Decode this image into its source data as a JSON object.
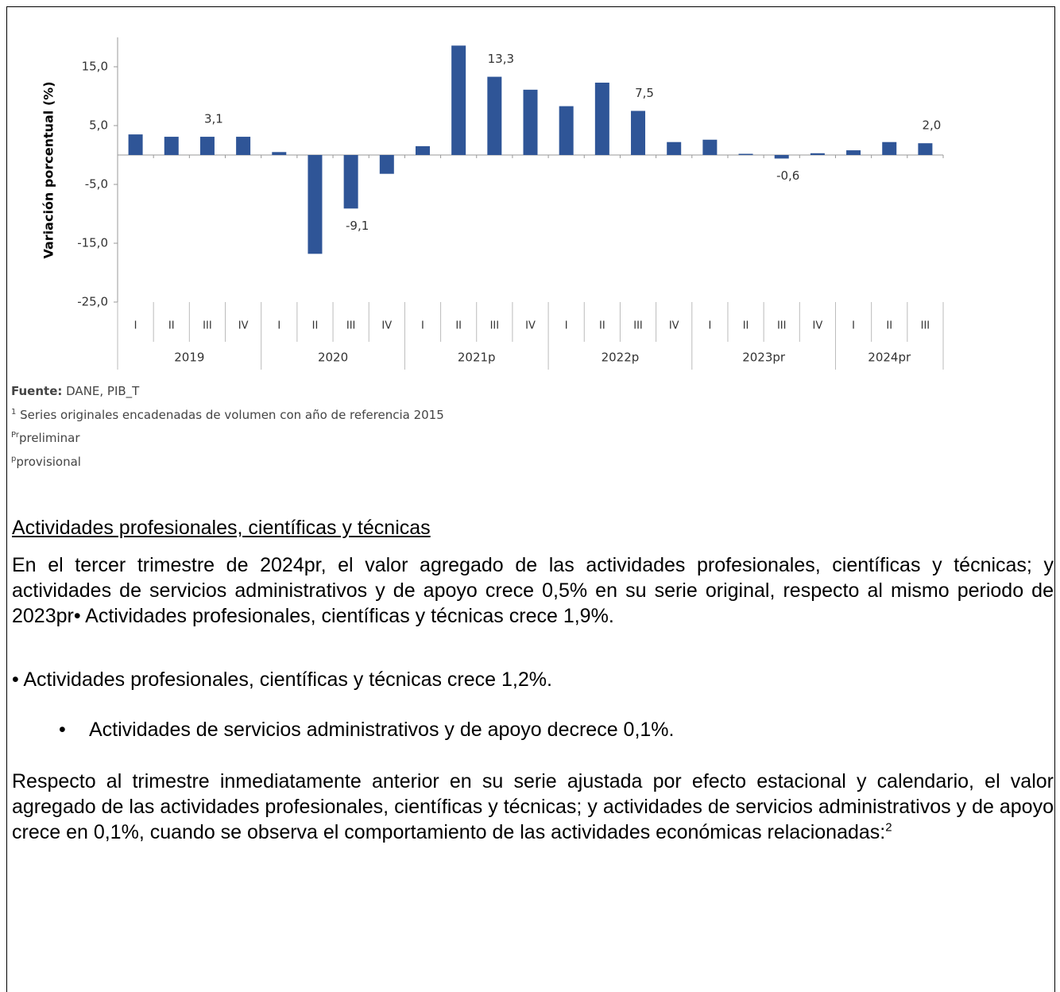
{
  "chart_data": {
    "type": "bar",
    "y_label": "Variación porcentual (%)",
    "color": "#2f5597",
    "ylim": [
      -25,
      20
    ],
    "yticks": [
      {
        "value": 15,
        "label": "15,0"
      },
      {
        "value": 5,
        "label": "5,0"
      },
      {
        "value": -5,
        "label": "-5,0"
      },
      {
        "value": -15,
        "label": "-15,0"
      },
      {
        "value": -25,
        "label": "-25,0"
      }
    ],
    "grid": false,
    "groups": [
      {
        "label": "2019",
        "categories": [
          "I",
          "II",
          "III",
          "IV"
        ],
        "values": [
          3.5,
          3.1,
          3.1,
          3.1
        ],
        "value_labels": [
          null,
          null,
          "3,1",
          null
        ]
      },
      {
        "label": "2020",
        "categories": [
          "I",
          "II",
          "III",
          "IV"
        ],
        "values": [
          0.5,
          -16.8,
          -9.1,
          -3.2
        ],
        "value_labels": [
          null,
          null,
          "-9,1",
          null
        ]
      },
      {
        "label": "2021p",
        "categories": [
          "I",
          "II",
          "III",
          "IV"
        ],
        "values": [
          1.5,
          18.6,
          13.3,
          11.1
        ],
        "value_labels": [
          null,
          null,
          "13,3",
          null
        ]
      },
      {
        "label": "2022p",
        "categories": [
          "I",
          "II",
          "III",
          "IV"
        ],
        "values": [
          8.3,
          12.3,
          7.5,
          2.2
        ],
        "value_labels": [
          null,
          null,
          "7,5",
          null
        ]
      },
      {
        "label": "2023pr",
        "categories": [
          "I",
          "II",
          "III",
          "IV"
        ],
        "values": [
          2.6,
          0.2,
          -0.6,
          0.3
        ],
        "value_labels": [
          null,
          null,
          "-0,6",
          null
        ]
      },
      {
        "label": "2024pr",
        "categories": [
          "I",
          "II",
          "III"
        ],
        "values": [
          0.8,
          2.2,
          2.0
        ],
        "value_labels": [
          null,
          null,
          "2,0"
        ]
      }
    ]
  },
  "document": {
    "source": {
      "label": "Fuente:",
      "text": " DANE, PIB_T"
    },
    "footnotes": [
      {
        "sup": "1",
        "text": " Series originales encadenadas de volumen con año de referencia 2015"
      },
      {
        "sup": "Pr",
        "text": "preliminar"
      },
      {
        "sup": "p",
        "text": "provisional"
      }
    ],
    "heading": "Actividades profesionales, científicas y técnicas",
    "paragraph_1": "En el tercer trimestre de 2024pr, el valor agregado de las actividades profesionales, científicas y técnicas; y actividades de servicios administrativos y de apoyo crece 0,5% en su serie original, respecto al mismo periodo de 2023pr• Actividades profesionales, científicas y técnicas crece 1,9%.",
    "paragraph_2": "• Actividades profesionales, científicas y técnicas crece 1,2%.",
    "bullet": "Actividades de servicios administrativos y de apoyo decrece 0,1%.",
    "paragraph_3": {
      "text": "Respecto al trimestre inmediatamente anterior en su serie ajustada por efecto estacional y calendario, el valor agregado de las actividades profesionales, científicas y técnicas; y actividades de servicios administrativos y de apoyo crece en 0,1%, cuando se observa el comportamiento de las actividades económicas relacionadas:",
      "sup": "2"
    }
  }
}
